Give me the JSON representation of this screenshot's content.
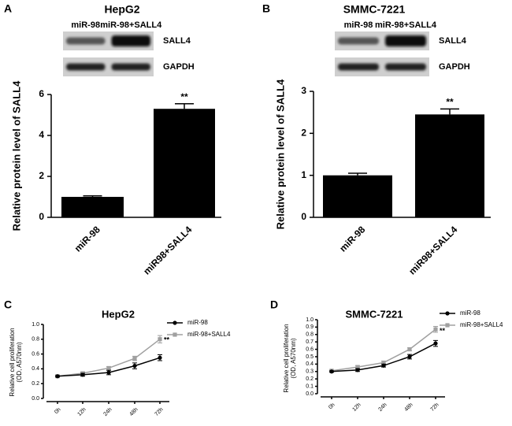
{
  "chart_data": [
    {
      "type": "bar",
      "panel": "A",
      "title": "HepG2",
      "blot": {
        "lanes": [
          "miR-98",
          "miR-98+SALL4"
        ],
        "bands": [
          "SALL4",
          "GAPDH"
        ]
      },
      "y_label": "Relative protein level of SALL4",
      "categories": [
        "miR-98",
        "miR98+SALL4"
      ],
      "values": [
        1.0,
        5.3
      ],
      "errors": [
        0.05,
        0.25
      ],
      "annotations": [
        null,
        "**"
      ],
      "color": "#000000",
      "ylim": [
        0,
        6
      ],
      "yticks": [
        0,
        2,
        4,
        6
      ]
    },
    {
      "type": "bar",
      "panel": "B",
      "title": "SMMC-7221",
      "blot": {
        "lanes": [
          "miR-98",
          "miR-98+SALL4"
        ],
        "bands": [
          "SALL4",
          "GAPDH"
        ]
      },
      "y_label": "Relative protein level of SALL4",
      "categories": [
        "miR-98",
        "miR98+SALL4"
      ],
      "values": [
        1.0,
        2.45
      ],
      "errors": [
        0.05,
        0.13
      ],
      "annotations": [
        null,
        "**"
      ],
      "color": "#000000",
      "ylim": [
        0,
        3
      ],
      "yticks": [
        0,
        1,
        2,
        3
      ]
    },
    {
      "type": "line",
      "panel": "C",
      "title": "HepG2",
      "y_label": [
        "Relative cell proliferation",
        "(OD, A570nm)"
      ],
      "categories": [
        "0h",
        "12h",
        "24h",
        "48h",
        "72h"
      ],
      "series": [
        {
          "name": "miR-98",
          "color": "#000000",
          "values": [
            0.3,
            0.32,
            0.35,
            0.44,
            0.55
          ],
          "errors": [
            0.01,
            0.02,
            0.03,
            0.04,
            0.04
          ]
        },
        {
          "name": "miR-98+SALL4",
          "color": "#a0a0a0",
          "values": [
            0.3,
            0.34,
            0.41,
            0.54,
            0.8
          ],
          "errors": [
            0.01,
            0.02,
            0.02,
            0.03,
            0.05
          ]
        }
      ],
      "annotation": "**",
      "ylim": [
        0,
        1
      ],
      "yticks": [
        {
          "value": 0,
          "label": "0.0"
        },
        {
          "value": 0.2,
          "label": "0.2"
        },
        {
          "value": 0.4,
          "label": "0.4"
        },
        {
          "value": 0.6,
          "label": "0.6"
        },
        {
          "value": 0.8,
          "label": "0.8"
        },
        {
          "value": 1,
          "label": "1.0"
        }
      ]
    },
    {
      "type": "line",
      "panel": "D",
      "title": "SMMC-7221",
      "y_label": [
        "Relative cell proliferation",
        "(OD, A570nm)"
      ],
      "categories": [
        "0h",
        "12h",
        "24h",
        "48h",
        "72h"
      ],
      "series": [
        {
          "name": "miR-98",
          "color": "#000000",
          "values": [
            0.3,
            0.32,
            0.38,
            0.5,
            0.68
          ],
          "errors": [
            0.01,
            0.02,
            0.02,
            0.03,
            0.04
          ]
        },
        {
          "name": "miR-98+SALL4",
          "color": "#a0a0a0",
          "values": [
            0.31,
            0.36,
            0.42,
            0.6,
            0.87
          ],
          "errors": [
            0.01,
            0.02,
            0.02,
            0.02,
            0.04
          ]
        }
      ],
      "annotation": "**",
      "ylim": [
        0,
        1
      ],
      "yticks": [
        {
          "value": 0,
          "label": "0.0"
        },
        {
          "value": 0.1,
          "label": "0.1"
        },
        {
          "value": 0.2,
          "label": "0.2"
        },
        {
          "value": 0.3,
          "label": "0.3"
        },
        {
          "value": 0.4,
          "label": "0.4"
        },
        {
          "value": 0.5,
          "label": "0.5"
        },
        {
          "value": 0.6,
          "label": "0.6"
        },
        {
          "value": 0.7,
          "label": "0.7"
        },
        {
          "value": 0.8,
          "label": "0.8"
        },
        {
          "value": 0.9,
          "label": "0.9"
        },
        {
          "value": 1,
          "label": "1.0"
        }
      ]
    }
  ]
}
